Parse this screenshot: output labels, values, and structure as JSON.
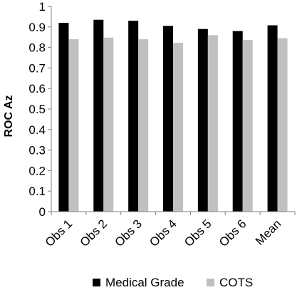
{
  "chart_data": {
    "type": "bar",
    "categories": [
      "Obs 1",
      "Obs 2",
      "Obs 3",
      "Obs 4",
      "Obs 5",
      "Obs 6",
      "Mean"
    ],
    "series": [
      {
        "name": "Medical Grade",
        "color": "#000000",
        "values": [
          0.92,
          0.935,
          0.93,
          0.905,
          0.89,
          0.88,
          0.908
        ]
      },
      {
        "name": "COTS",
        "color": "#c0c0c0",
        "values": [
          0.84,
          0.848,
          0.84,
          0.823,
          0.86,
          0.837,
          0.845
        ]
      }
    ],
    "title": "",
    "xlabel": "",
    "ylabel": "ROC Az",
    "ylim": [
      0,
      1
    ],
    "yticks": [
      "0",
      "0.1",
      "0.2",
      "0.3",
      "0.4",
      "0.5",
      "0.6",
      "0.7",
      "0.8",
      "0.9",
      "1"
    ],
    "grid": false,
    "legend_position": "bottom"
  }
}
